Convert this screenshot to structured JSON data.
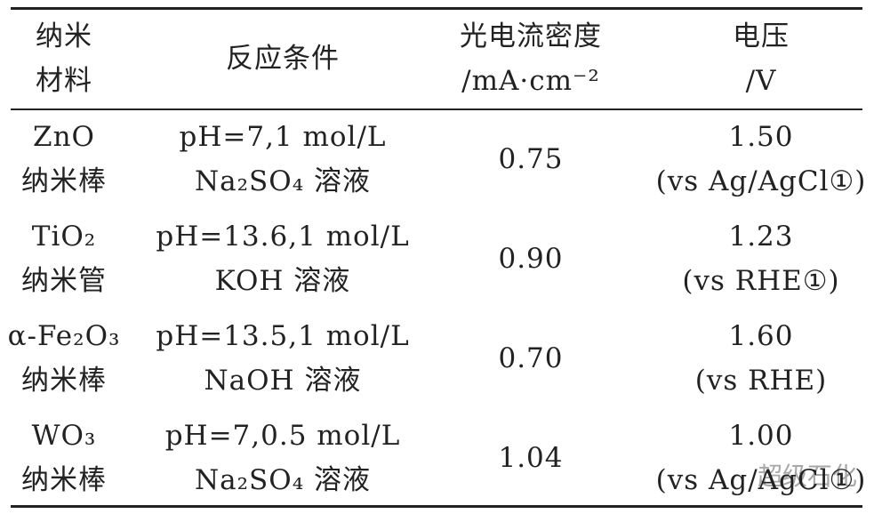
{
  "table": {
    "header": [
      [
        "纳米",
        "材料"
      ],
      [
        "反应条件"
      ],
      [
        "光电流密度",
        "/mA·cm⁻²"
      ],
      [
        "电压",
        "/V"
      ]
    ],
    "rows": [
      [
        [
          "ZnO",
          "纳米棒"
        ],
        [
          "pH=7,1 mol/L",
          "Na₂SO₄ 溶液"
        ],
        [
          "0.75"
        ],
        [
          "1.50",
          "(vs Ag/AgCl①)"
        ]
      ],
      [
        [
          "TiO₂",
          "纳米管"
        ],
        [
          "pH=13.6,1 mol/L",
          "KOH 溶液"
        ],
        [
          "0.90"
        ],
        [
          "1.23",
          "(vs RHE①)"
        ]
      ],
      [
        [
          "α-Fe₂O₃",
          "纳米棒"
        ],
        [
          "pH=13.5,1 mol/L",
          "NaOH 溶液"
        ],
        [
          "0.70"
        ],
        [
          "1.60",
          "(vs RHE)"
        ]
      ],
      [
        [
          "WO₃",
          "纳米棒"
        ],
        [
          "pH=7,0.5 mol/L",
          "Na₂SO₄ 溶液"
        ],
        [
          "1.04"
        ],
        [
          "1.00",
          "(vs Ag/AgCl①)"
        ]
      ]
    ]
  },
  "watermark": "超级石化"
}
